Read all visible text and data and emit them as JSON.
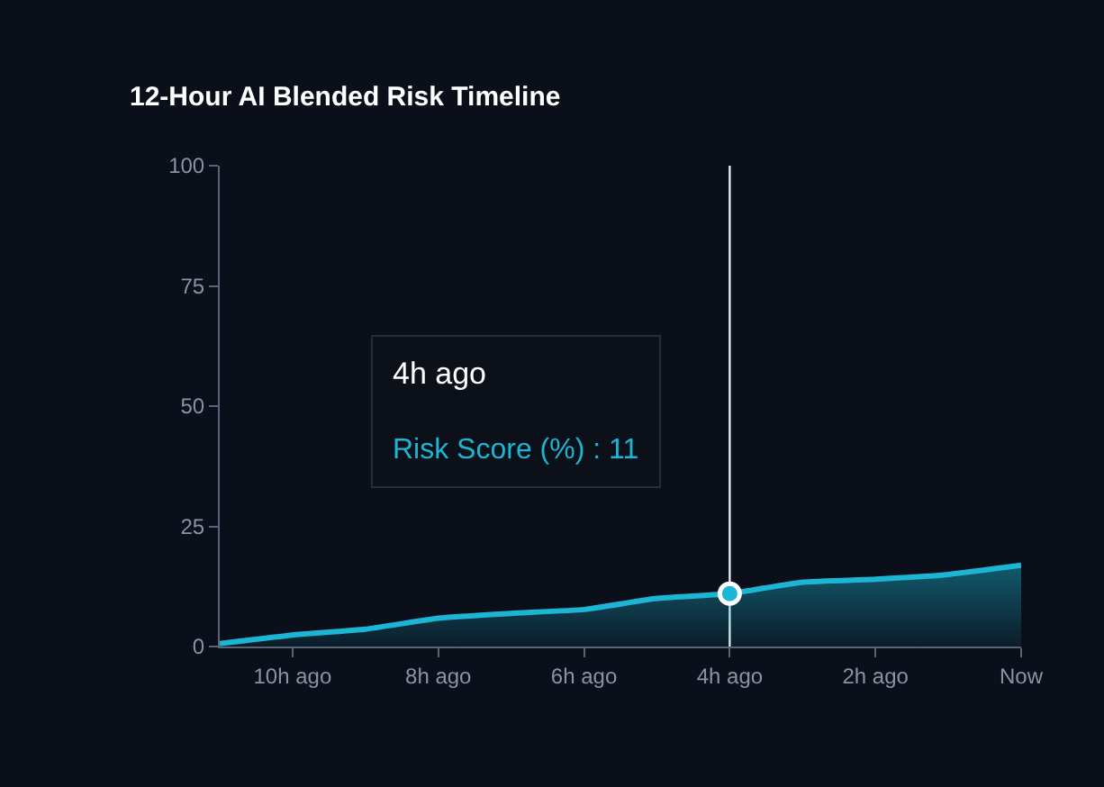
{
  "chart_data": {
    "type": "area",
    "title": "12-Hour AI Blended Risk Timeline",
    "categories": [
      null,
      "10h ago",
      null,
      "8h ago",
      null,
      "6h ago",
      null,
      "4h ago",
      null,
      "2h ago",
      null,
      "Now"
    ],
    "series": [
      {
        "color": "#1cb5d4",
        "values": [
          0.6,
          2.4,
          3.6,
          5.9,
          6.9,
          7.7,
          10.0,
          11,
          13.4,
          14.0,
          15.0,
          16.9
        ]
      },
      {
        "type": "scatter",
        "color": "#1cb5d4",
        "x": [
          "4h ago"
        ],
        "values": [
          11
        ],
        "marker": "circle"
      }
    ],
    "ylim": [
      0,
      100
    ],
    "yticks": [
      0,
      25,
      50,
      75,
      100
    ],
    "marker": "none",
    "ref_lines": [
      {
        "axis": "x",
        "value": "4h ago",
        "color": "#e6e9ef"
      }
    ],
    "annotations": [
      "4h ago",
      "Risk Score (%) : 11"
    ]
  }
}
